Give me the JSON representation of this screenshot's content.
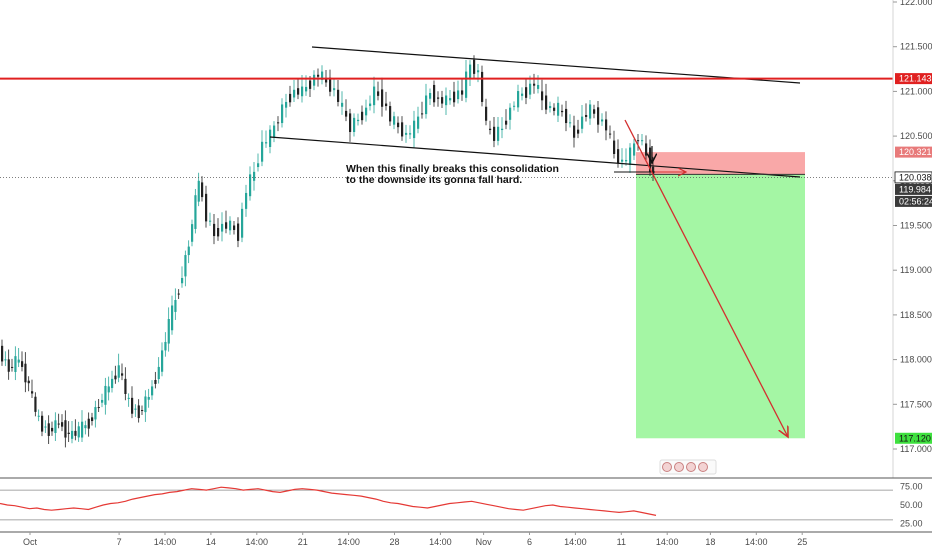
{
  "chart_data": {
    "type": "candlestick",
    "title": "",
    "y_axis": {
      "ticks": [
        "122.000",
        "121.500",
        "121.000",
        "120.500",
        "120.000",
        "119.500",
        "119.000",
        "118.500",
        "118.000",
        "117.500",
        "117.000"
      ],
      "tick_values": [
        122.0,
        121.5,
        121.0,
        120.5,
        120.0,
        119.5,
        119.0,
        118.5,
        118.0,
        117.5,
        117.0
      ],
      "range": [
        116.95,
        122.05
      ]
    },
    "x_axis": {
      "ticks": [
        "Oct",
        "7",
        "14:00",
        "14",
        "14:00",
        "21",
        "14:00",
        "28",
        "14:00",
        "Nov",
        "6",
        "14:00",
        "11",
        "14:00",
        "18",
        "14:00",
        "25"
      ],
      "tick_positions": [
        0,
        33,
        50,
        67,
        84,
        101,
        118,
        135,
        152,
        168,
        185,
        202,
        219,
        236,
        252,
        269,
        286
      ],
      "range": [
        0,
        300
      ]
    },
    "price_labels": {
      "resistance": "121.143",
      "stop": "120.321",
      "last": "120.038",
      "bid": "119.984",
      "countdown": "02:56:24",
      "target": "117.120"
    },
    "levels": {
      "resistance": 121.143,
      "stop": 120.321,
      "entry": 120.038,
      "target": 117.12
    },
    "annotation": {
      "line1": "When this finally breaks this consolidation",
      "line2": "to the downside its gonna fall hard."
    },
    "rsi": {
      "ticks": [
        "75.00",
        "50.00",
        "25.00"
      ],
      "tick_values": [
        75,
        50,
        25
      ],
      "values": [
        52,
        50,
        49,
        47,
        45,
        46,
        44,
        43,
        44,
        45,
        46,
        45,
        44,
        47,
        50,
        52,
        53,
        55,
        58,
        60,
        62,
        64,
        65,
        67,
        68,
        70,
        72,
        71,
        70,
        72,
        74,
        73,
        72,
        70,
        71,
        72,
        70,
        68,
        67,
        69,
        71,
        72,
        71,
        70,
        68,
        66,
        65,
        64,
        63,
        62,
        60,
        58,
        55,
        53,
        52,
        50,
        48,
        47,
        46,
        48,
        50,
        52,
        53,
        54,
        55,
        53,
        51,
        49,
        47,
        45,
        44,
        43,
        45,
        47,
        49,
        50,
        48,
        47,
        46,
        45,
        44,
        43,
        42,
        41,
        40,
        41,
        42,
        40,
        38,
        36
      ],
      "upper_band": 70,
      "lower_band": 30
    },
    "colors": {
      "up": "#26a69a",
      "down": "#222222",
      "resistance": "#e02020",
      "stop_zone": "#f9a3a3",
      "target_zone": "#9ff59f",
      "arrow": "#d32f2f",
      "rsi_line": "#e53935"
    }
  }
}
